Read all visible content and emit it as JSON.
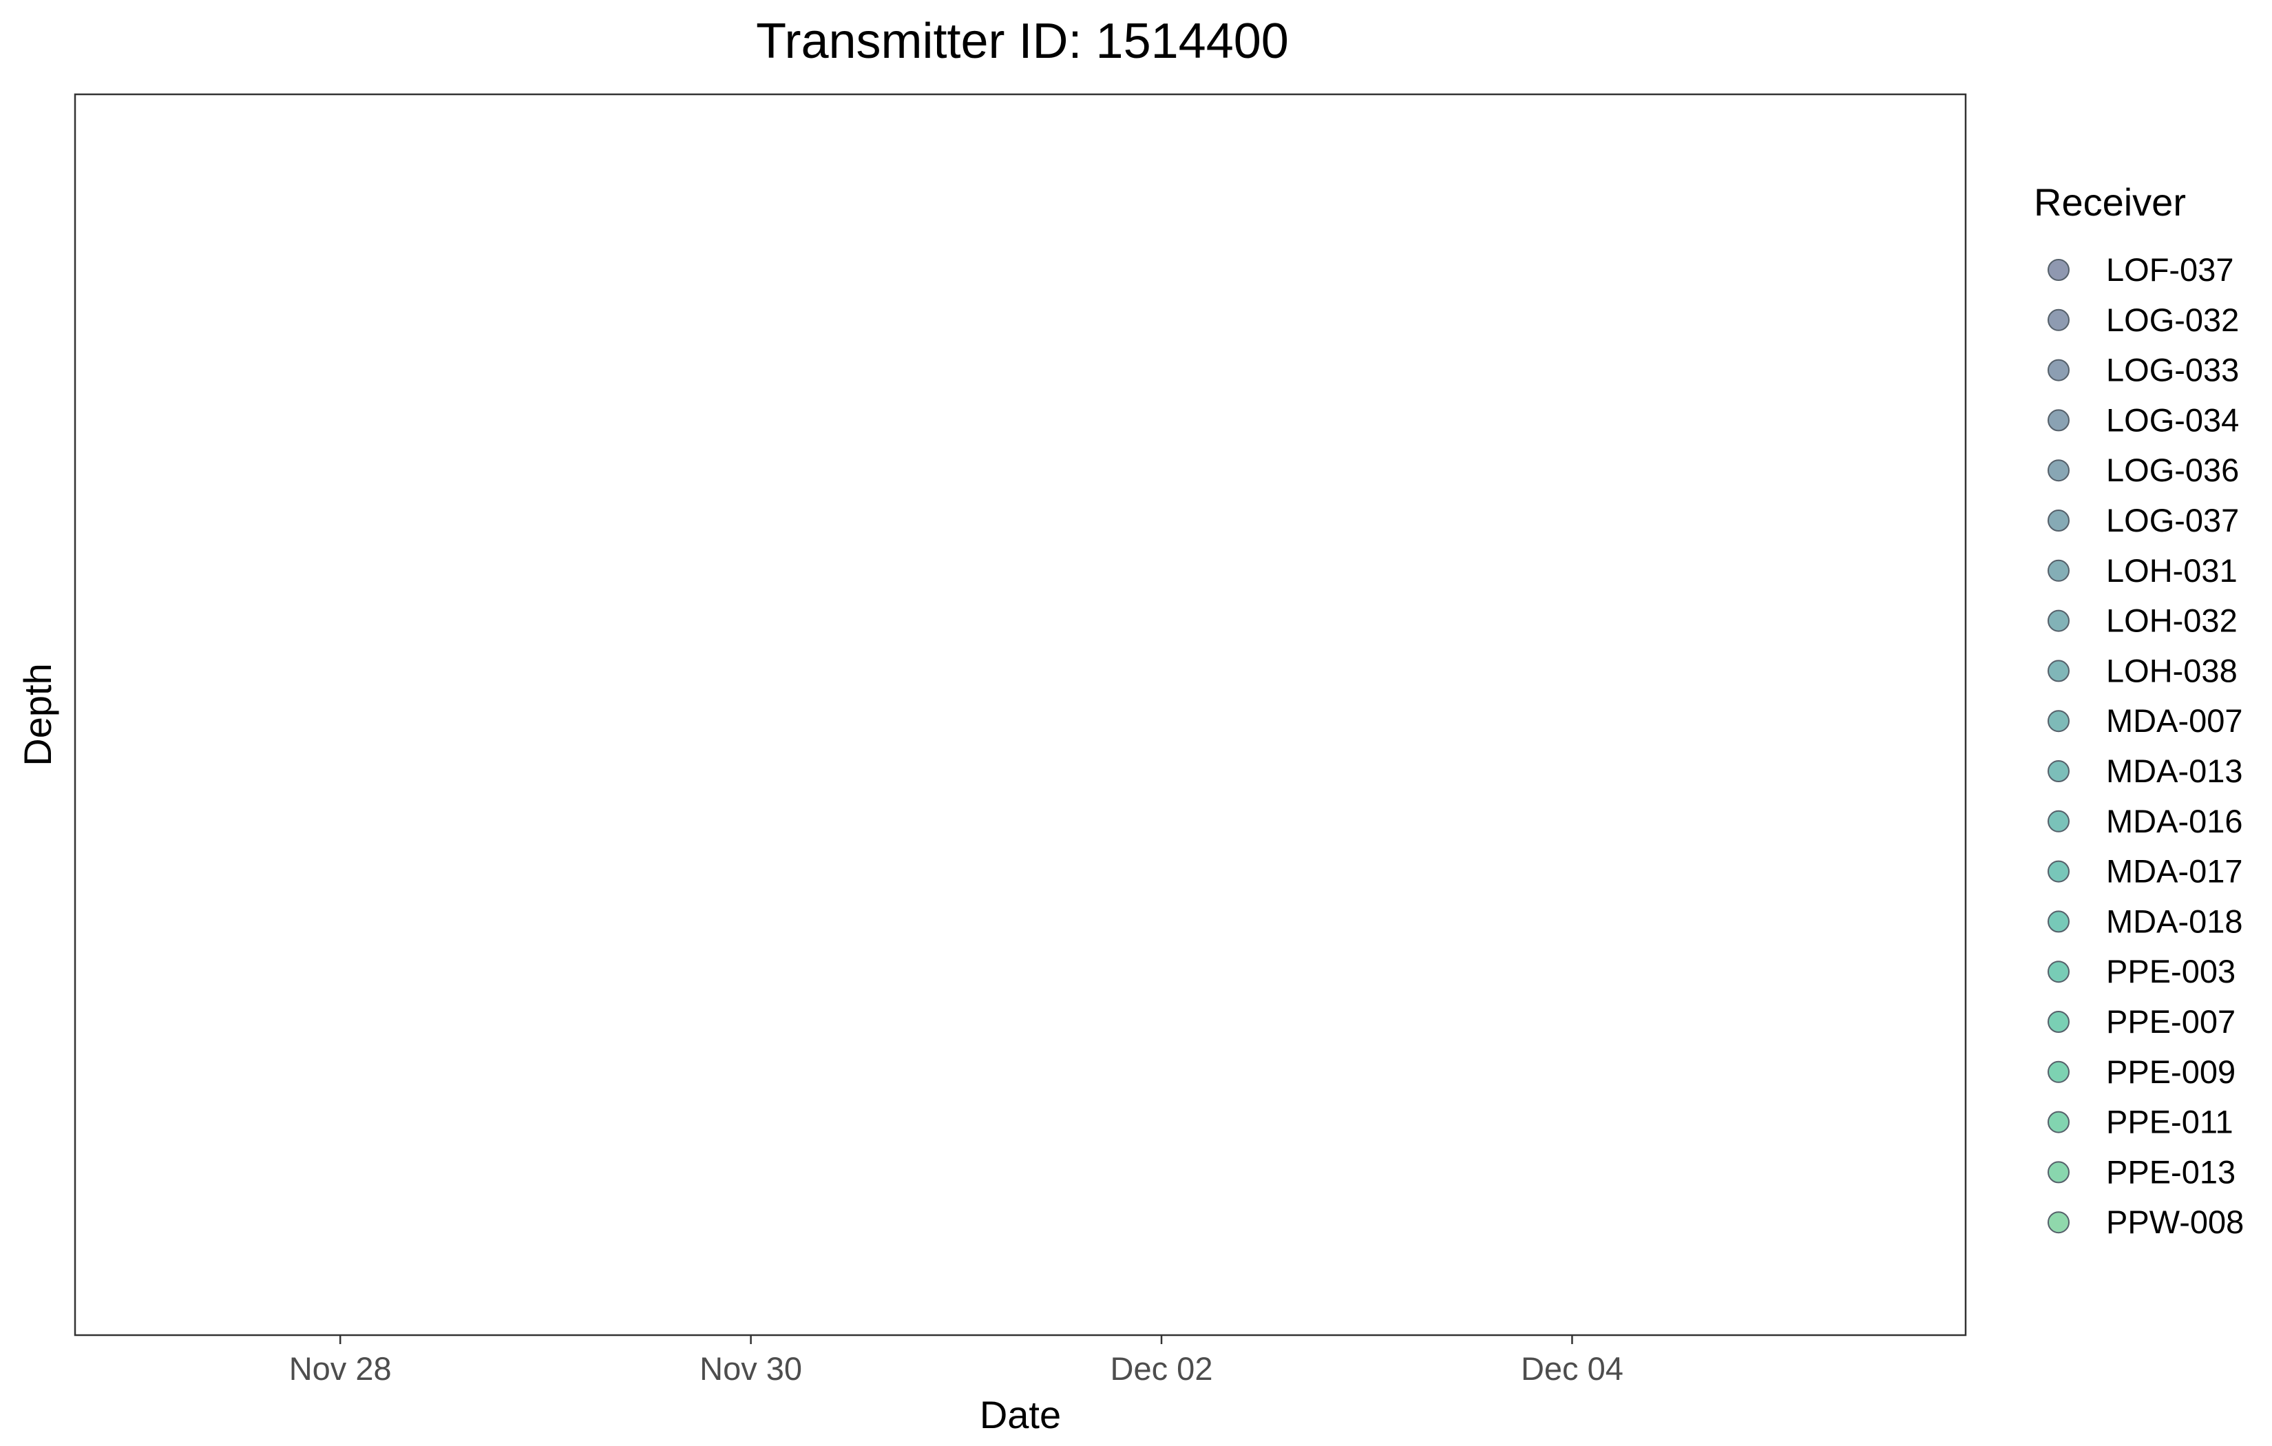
{
  "chart_data": {
    "type": "scatter",
    "title": "Transmitter ID: 1514400",
    "xlabel": "Date",
    "ylabel": "Depth",
    "x_axis": {
      "scale": "date",
      "range": [
        "2024-11-26T17:00",
        "2024-12-05T22:00"
      ],
      "ticks": [
        {
          "value": "2024-11-28",
          "label": "Nov 28"
        },
        {
          "value": "2024-11-30",
          "label": "Nov 30"
        },
        {
          "value": "2024-12-02",
          "label": "Dec 02"
        },
        {
          "value": "2024-12-04",
          "label": "Dec 04"
        }
      ]
    },
    "y_axis": {
      "ticks": []
    },
    "grid": false,
    "legend": {
      "title": "Receiver",
      "placement": "right",
      "entries": [
        {
          "label": "LOF-037",
          "color": "#8f98b0"
        },
        {
          "label": "LOG-032",
          "color": "#8e9bb1"
        },
        {
          "label": "LOG-033",
          "color": "#8c9eb2"
        },
        {
          "label": "LOG-034",
          "color": "#8aa2b3"
        },
        {
          "label": "LOG-036",
          "color": "#88a6b4"
        },
        {
          "label": "LOG-037",
          "color": "#86aab5"
        },
        {
          "label": "LOH-031",
          "color": "#84aeb6"
        },
        {
          "label": "LOH-032",
          "color": "#82b2b7"
        },
        {
          "label": "LOH-038",
          "color": "#80b6b8"
        },
        {
          "label": "MDA-007",
          "color": "#7ebab8"
        },
        {
          "label": "MDA-013",
          "color": "#7cbeb9"
        },
        {
          "label": "MDA-016",
          "color": "#7ac2b9"
        },
        {
          "label": "MDA-017",
          "color": "#78c6b9"
        },
        {
          "label": "MDA-018",
          "color": "#77c9b8"
        },
        {
          "label": "PPE-003",
          "color": "#78ccb6"
        },
        {
          "label": "PPE-007",
          "color": "#7acfb4"
        },
        {
          "label": "PPE-009",
          "color": "#7dd2b2"
        },
        {
          "label": "PPE-011",
          "color": "#82d4b0"
        },
        {
          "label": "PPE-013",
          "color": "#89d6ae"
        },
        {
          "label": "PPW-008",
          "color": "#90d8ac"
        }
      ]
    },
    "series": []
  }
}
